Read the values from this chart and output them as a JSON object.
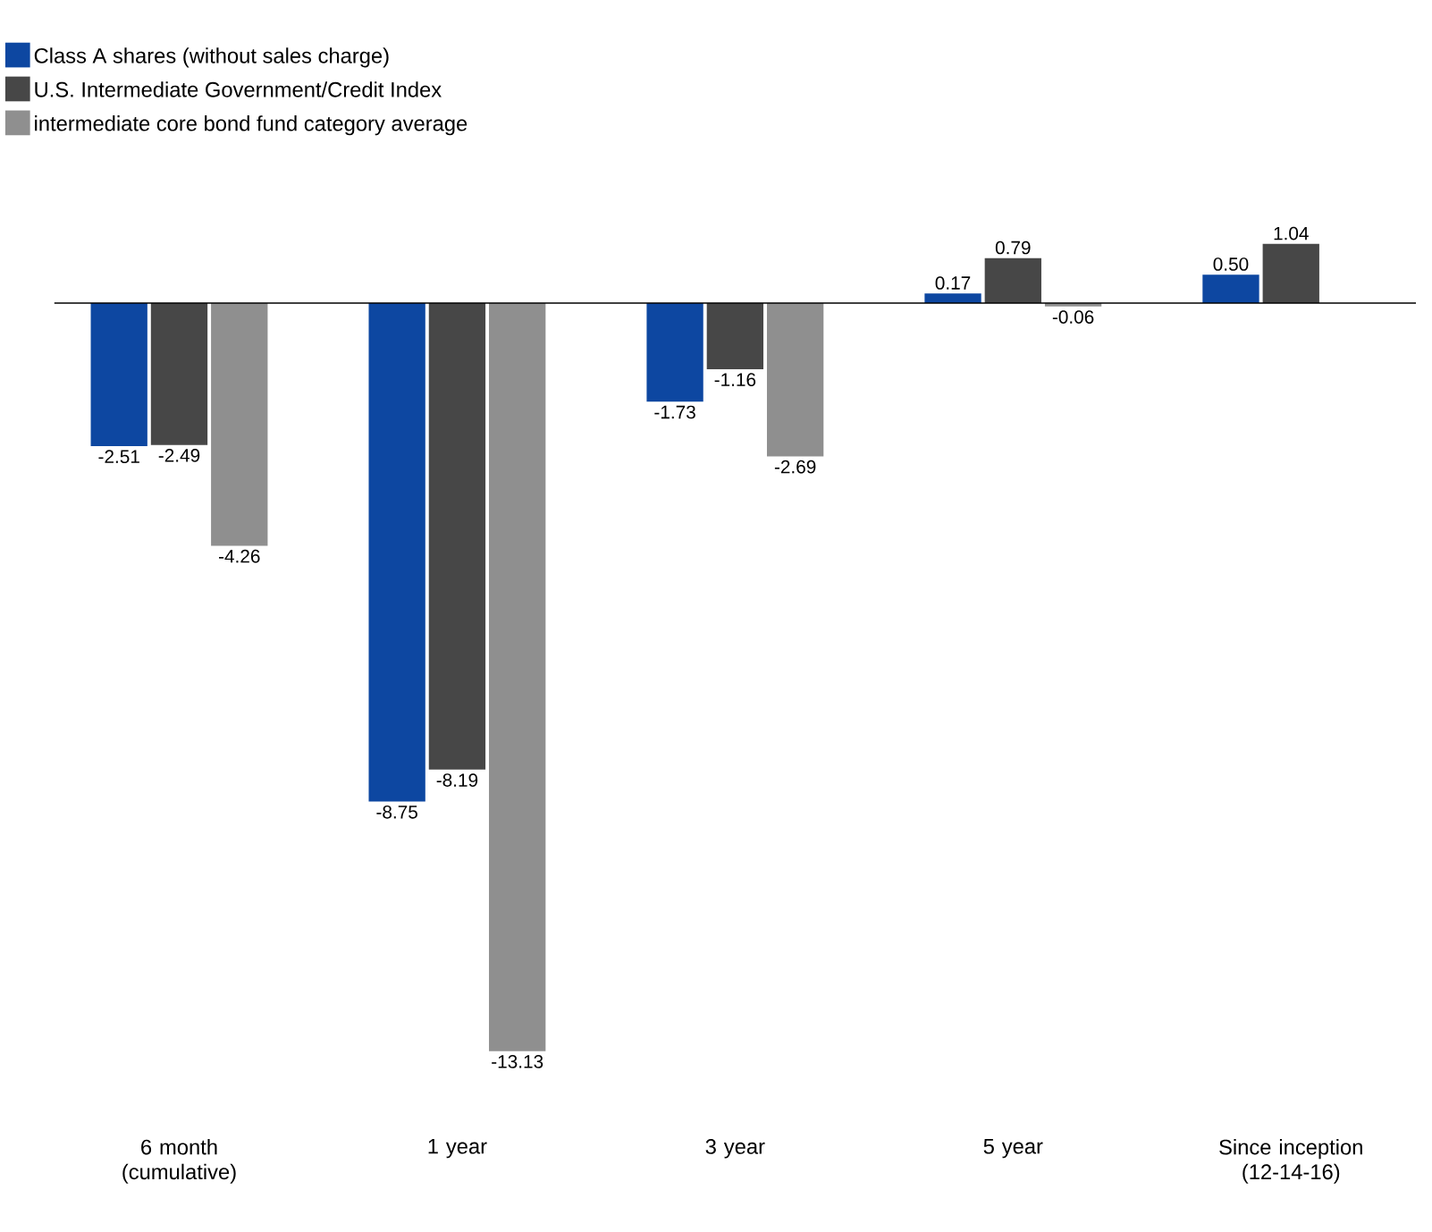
{
  "chart_data": {
    "type": "bar",
    "categories": [
      "6 month (cumulative)",
      "1 year",
      "3 year",
      "5 year",
      "Since inception (12-14-16)"
    ],
    "series": [
      {
        "name": "Class A shares (without sales charge)",
        "color": "#0d47a1",
        "values": [
          -2.51,
          -8.75,
          -1.73,
          0.17,
          0.5
        ],
        "value_labels": [
          "-2.51",
          "-8.75",
          "-1.73",
          "0.17",
          "0.50"
        ]
      },
      {
        "name": "U.S. Intermediate Government/Credit Index",
        "color": "#474747",
        "values": [
          -2.49,
          -8.19,
          -1.16,
          0.79,
          1.04
        ],
        "value_labels": [
          "-2.49",
          "-8.19",
          "-1.16",
          "0.79",
          "1.04"
        ]
      },
      {
        "name": "intermediate core bond fund category average",
        "color": "#8f8f8f",
        "values": [
          -4.26,
          -13.13,
          -2.69,
          -0.06,
          null
        ],
        "value_labels": [
          "-4.26",
          "-13.13",
          "-2.69",
          "-0.06",
          null
        ]
      }
    ],
    "legend": "top left"
  }
}
